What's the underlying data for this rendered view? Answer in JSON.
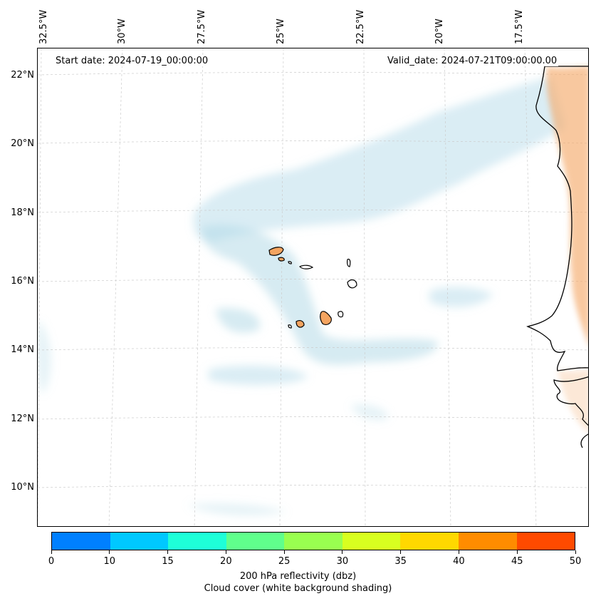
{
  "map": {
    "start_date": "Start date: 2024-07-19_00:00:00",
    "valid_date": "Valid_date: 2024-07-21T09:00:00.00",
    "lon_labels": [
      "32.5°W",
      "30°W",
      "27.5°W",
      "25°W",
      "22.5°W",
      "20°W",
      "17.5°W"
    ],
    "lat_labels": [
      "22°N",
      "20°N",
      "18°N",
      "16°N",
      "14°N",
      "12°N",
      "10°N"
    ],
    "colors": {
      "cloud": "#add8e6",
      "land_reflectivity": "#f4a460",
      "coastline": "#000000",
      "grid": "#cccccc"
    }
  },
  "colorbar": {
    "ticks": [
      "0",
      "10",
      "15",
      "20",
      "25",
      "30",
      "35",
      "40",
      "45",
      "50"
    ],
    "colors": [
      "#0080ff",
      "#00c8ff",
      "#1effd8",
      "#60ff8c",
      "#99ff50",
      "#d8ff20",
      "#ffd800",
      "#ff8c00",
      "#ff4a00"
    ],
    "label_line1": "200 hPa reflectivity (dbz)",
    "label_line2": "Cloud cover (white background shading)"
  }
}
